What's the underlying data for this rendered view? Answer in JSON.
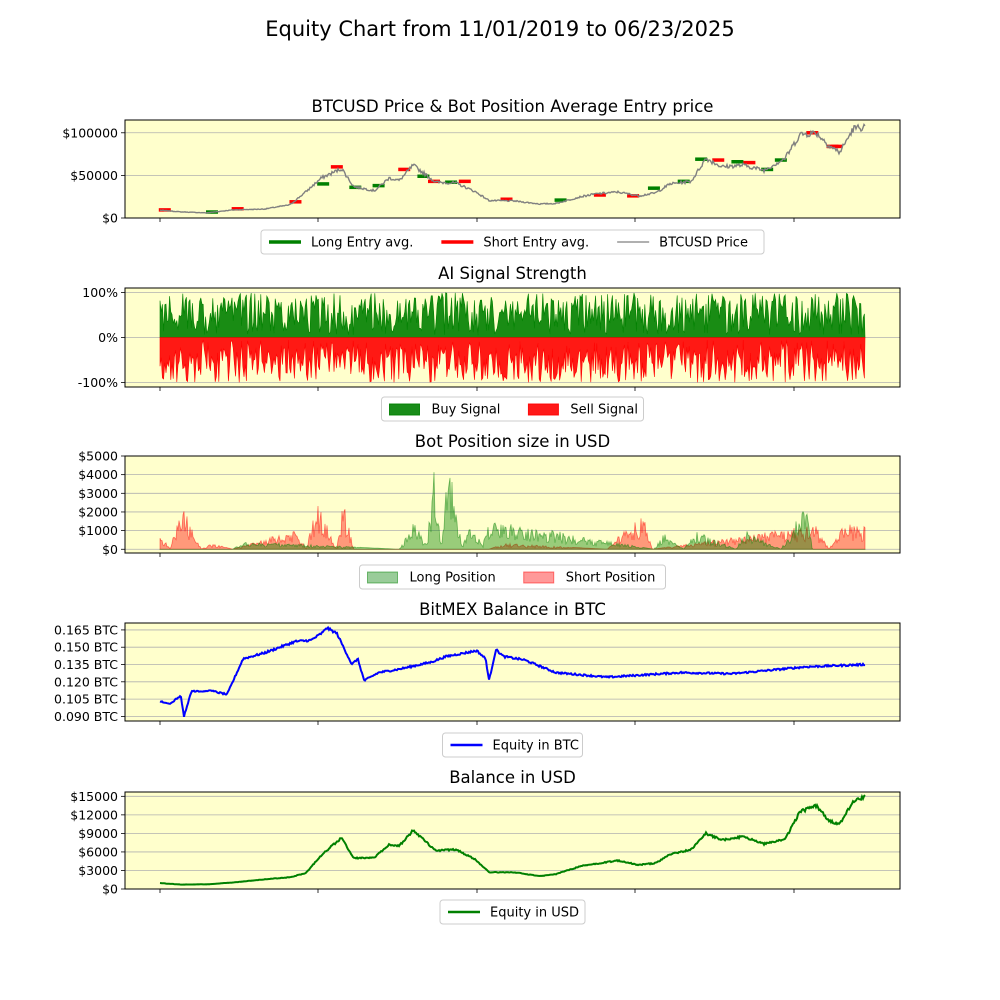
{
  "figure": {
    "title": "Equity Chart from 11/01/2019 to 06/23/2025",
    "background": "#ffffff",
    "axes_facecolor": "#ffffcc"
  },
  "chart_data": [
    {
      "type": "line",
      "title": "BTCUSD Price & Bot Position Average Entry price",
      "xlabel": "",
      "ylabel": "",
      "x_range": [
        "2019-11-01",
        "2025-06-23"
      ],
      "ylim": [
        0,
        115000
      ],
      "y_ticks": [
        0,
        50000,
        100000
      ],
      "y_tick_labels": [
        "$0",
        "$50000",
        "$100000"
      ],
      "grid": "y",
      "legend": {
        "placement": "below",
        "entries": [
          "Long Entry avg.",
          "Short Entry avg.",
          "BTCUSD Price"
        ]
      },
      "series": [
        {
          "name": "BTCUSD Price",
          "color": "#808080",
          "x": [
            "2019-11-01",
            "2020-01-01",
            "2020-03-15",
            "2020-06-01",
            "2020-09-01",
            "2020-11-15",
            "2021-01-01",
            "2021-02-15",
            "2021-04-15",
            "2021-05-20",
            "2021-07-20",
            "2021-09-01",
            "2021-10-01",
            "2021-11-10",
            "2022-01-15",
            "2022-03-15",
            "2022-05-10",
            "2022-06-20",
            "2022-09-01",
            "2022-11-15",
            "2023-01-01",
            "2023-03-15",
            "2023-05-01",
            "2023-07-01",
            "2023-09-01",
            "2023-10-20",
            "2023-12-01",
            "2024-02-01",
            "2024-03-15",
            "2024-05-01",
            "2024-07-01",
            "2024-09-01",
            "2024-11-01",
            "2024-12-15",
            "2025-02-01",
            "2025-03-10",
            "2025-04-10",
            "2025-05-20",
            "2025-06-23"
          ],
          "y": [
            9200,
            7200,
            6000,
            9500,
            10500,
            15500,
            31000,
            47000,
            58000,
            37000,
            32000,
            47000,
            44000,
            62000,
            42000,
            41000,
            31000,
            20500,
            20000,
            16500,
            17000,
            25000,
            28500,
            30500,
            26000,
            29500,
            40000,
            43000,
            70000,
            60000,
            62000,
            56000,
            70000,
            98000,
            100000,
            85000,
            77000,
            105000,
            107000
          ]
        },
        {
          "name": "Long Entry avg.",
          "color": "#008000",
          "x": [
            "2020-04-01",
            "2021-02-20",
            "2021-05-25",
            "2021-08-01",
            "2021-12-10",
            "2022-03-01",
            "2023-01-15",
            "2023-10-15",
            "2024-01-10",
            "2024-03-01",
            "2024-06-15",
            "2024-09-10",
            "2024-10-20"
          ],
          "y": [
            7000,
            40000,
            36000,
            38000,
            49000,
            42000,
            21000,
            35000,
            43000,
            69000,
            66000,
            57000,
            68000
          ]
        },
        {
          "name": "Short Entry avg.",
          "color": "#ff0000",
          "x": [
            "2019-11-15",
            "2020-06-15",
            "2020-12-01",
            "2021-04-01",
            "2021-10-15",
            "2022-01-10",
            "2022-04-10",
            "2022-08-10",
            "2023-05-10",
            "2023-08-15",
            "2024-04-20",
            "2024-07-20",
            "2025-01-20",
            "2025-03-20",
            "2025-04-01"
          ],
          "y": [
            9500,
            10800,
            19000,
            60000,
            57000,
            43000,
            43000,
            22000,
            27000,
            26000,
            68000,
            65000,
            100000,
            84000,
            84000
          ]
        }
      ]
    },
    {
      "type": "bar",
      "title": "AI Signal Strength",
      "xlabel": "",
      "ylabel": "",
      "x_range": [
        "2019-11-01",
        "2025-06-23"
      ],
      "ylim": [
        -110,
        110
      ],
      "y_ticks": [
        -100,
        0,
        100
      ],
      "y_tick_labels": [
        "-100%",
        "0%",
        "100%"
      ],
      "grid": "y",
      "legend": {
        "placement": "below",
        "entries": [
          "Buy Signal",
          "Sell Signal"
        ]
      },
      "series": [
        {
          "name": "Buy Signal",
          "color": "#008000",
          "values_range_percent": [
            0,
            100
          ]
        },
        {
          "name": "Sell Signal",
          "color": "#ff0000",
          "values_range_percent": [
            -100,
            0
          ]
        }
      ]
    },
    {
      "type": "area",
      "title": "Bot Position size in USD",
      "xlabel": "",
      "ylabel": "",
      "x_range": [
        "2019-11-01",
        "2025-06-23"
      ],
      "ylim": [
        -200,
        5000
      ],
      "y_ticks": [
        0,
        1000,
        2000,
        3000,
        4000,
        5000
      ],
      "y_tick_labels": [
        "$0",
        "$1000",
        "$2000",
        "$3000",
        "$4000",
        "$5000"
      ],
      "grid": "y",
      "legend": {
        "placement": "below",
        "entries": [
          "Long Position",
          "Short Position"
        ]
      },
      "series": [
        {
          "name": "Long Position",
          "color": "#008000",
          "x": [
            "2020-06-01",
            "2020-07-01",
            "2021-10-01",
            "2021-11-15",
            "2021-12-20",
            "2022-01-10",
            "2022-02-01",
            "2022-02-20",
            "2022-04-01",
            "2022-05-01",
            "2022-06-01",
            "2022-06-20",
            "2023-10-15",
            "2023-11-15",
            "2024-01-10",
            "2024-02-15",
            "2024-06-10",
            "2024-07-10",
            "2024-10-20",
            "2024-12-01",
            "2025-01-01",
            "2025-01-20"
          ],
          "y": [
            0,
            400,
            0,
            1400,
            200,
            4200,
            300,
            4800,
            200,
            1400,
            200,
            1500,
            0,
            800,
            0,
            900,
            0,
            900,
            0,
            1300,
            2600,
            0
          ]
        },
        {
          "name": "Short Position",
          "color": "#ff0000",
          "x": [
            "2019-11-01",
            "2019-12-01",
            "2020-01-01",
            "2020-03-01",
            "2020-04-01",
            "2020-06-01",
            "2020-12-01",
            "2021-01-01",
            "2021-02-01",
            "2021-04-01",
            "2021-04-20",
            "2021-05-20",
            "2022-06-20",
            "2022-08-01",
            "2023-06-01",
            "2023-08-01",
            "2023-09-15",
            "2023-10-10",
            "2025-02-01",
            "2025-03-10",
            "2025-04-20"
          ],
          "y": [
            800,
            0,
            2300,
            0,
            300,
            0,
            1000,
            0,
            2400,
            0,
            2500,
            0,
            0,
            300,
            0,
            1200,
            1600,
            0,
            1200,
            0,
            1200
          ]
        }
      ]
    },
    {
      "type": "line",
      "title": "BitMEX Balance in BTC",
      "xlabel": "",
      "ylabel": "",
      "x_range": [
        "2019-11-01",
        "2025-06-23"
      ],
      "ylim": [
        0.086,
        0.171
      ],
      "y_ticks": [
        0.09,
        0.105,
        0.12,
        0.135,
        0.15,
        0.165
      ],
      "y_tick_labels": [
        "0.090 BTC",
        "0.105 BTC",
        "0.120 BTC",
        "0.135 BTC",
        "0.150 BTC",
        "0.165 BTC"
      ],
      "grid": "y",
      "legend": {
        "placement": "below",
        "entries": [
          "Equity in BTC"
        ]
      },
      "series": [
        {
          "name": "Equity in BTC",
          "color": "#0000ff",
          "x": [
            "2019-11-01",
            "2019-12-01",
            "2020-01-01",
            "2020-01-10",
            "2020-02-01",
            "2020-04-01",
            "2020-05-15",
            "2020-07-01",
            "2020-09-01",
            "2020-12-01",
            "2021-01-15",
            "2021-02-20",
            "2021-03-01",
            "2021-04-01",
            "2021-05-15",
            "2021-06-01",
            "2021-06-20",
            "2021-08-01",
            "2021-10-01",
            "2022-01-01",
            "2022-02-15",
            "2022-05-15",
            "2022-06-10",
            "2022-06-20",
            "2022-07-10",
            "2022-08-01",
            "2022-10-01",
            "2023-01-01",
            "2023-06-01",
            "2024-01-01",
            "2024-06-01",
            "2025-01-01",
            "2025-06-23"
          ],
          "y": [
            0.103,
            0.101,
            0.108,
            0.09,
            0.112,
            0.112,
            0.109,
            0.14,
            0.145,
            0.155,
            0.156,
            0.163,
            0.167,
            0.162,
            0.135,
            0.14,
            0.121,
            0.128,
            0.131,
            0.137,
            0.142,
            0.147,
            0.14,
            0.121,
            0.148,
            0.142,
            0.139,
            0.128,
            0.124,
            0.128,
            0.127,
            0.133,
            0.135
          ]
        }
      ]
    },
    {
      "type": "line",
      "title": "Balance in USD",
      "xlabel": "",
      "ylabel": "",
      "x_range": [
        "2019-11-01",
        "2025-06-23"
      ],
      "ylim": [
        0,
        15700
      ],
      "y_ticks": [
        0,
        3000,
        6000,
        9000,
        12000,
        15000
      ],
      "y_tick_labels": [
        "$0",
        "$3000",
        "$6000",
        "$9000",
        "$12000",
        "$15000"
      ],
      "grid": "y",
      "legend": {
        "placement": "below",
        "entries": [
          "Equity in USD"
        ]
      },
      "series": [
        {
          "name": "Equity in USD",
          "color": "#008000",
          "x": [
            "2019-11-01",
            "2020-01-01",
            "2020-03-15",
            "2020-06-01",
            "2020-09-01",
            "2020-11-15",
            "2021-01-01",
            "2021-02-15",
            "2021-04-15",
            "2021-05-20",
            "2021-07-20",
            "2021-09-01",
            "2021-10-01",
            "2021-11-10",
            "2022-01-15",
            "2022-03-15",
            "2022-05-10",
            "2022-06-20",
            "2022-09-01",
            "2022-11-15",
            "2023-01-01",
            "2023-03-15",
            "2023-05-01",
            "2023-07-01",
            "2023-09-01",
            "2023-10-20",
            "2023-12-01",
            "2024-02-01",
            "2024-03-15",
            "2024-05-01",
            "2024-07-01",
            "2024-09-01",
            "2024-11-01",
            "2024-12-15",
            "2025-02-01",
            "2025-03-10",
            "2025-04-10",
            "2025-05-20",
            "2025-06-23"
          ],
          "y": [
            950,
            720,
            750,
            1050,
            1550,
            1900,
            2600,
            5500,
            8300,
            5000,
            5100,
            7200,
            7000,
            9500,
            6200,
            6400,
            4800,
            2700,
            2700,
            2100,
            2400,
            3700,
            4100,
            4600,
            3900,
            4200,
            5600,
            6400,
            9000,
            7900,
            8500,
            7300,
            8000,
            12500,
            13500,
            11000,
            10500,
            14200,
            15000
          ]
        }
      ]
    }
  ]
}
